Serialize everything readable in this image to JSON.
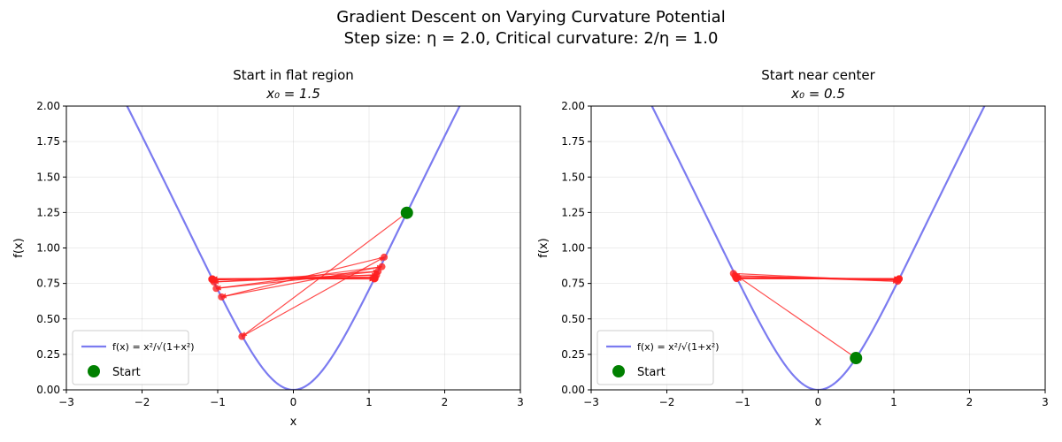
{
  "figure": {
    "suptitle_line1": "Gradient Descent on Varying Curvature Potential",
    "suptitle_line2": "Step size: η = 2.0, Critical curvature: 2/η = 1.0"
  },
  "chart_data": [
    {
      "type": "line",
      "title": "Start in flat region",
      "subtitle": "x₀ = 1.5",
      "xlabel": "x",
      "ylabel": "f(x)",
      "xlim": [
        -3,
        3
      ],
      "ylim": [
        0,
        2
      ],
      "xticks": [
        "−3",
        "−2",
        "−1",
        "0",
        "1",
        "2",
        "3"
      ],
      "yticks": [
        "0.00",
        "0.25",
        "0.50",
        "0.75",
        "1.00",
        "1.25",
        "1.50",
        "1.75",
        "2.00"
      ],
      "grid": true,
      "legend_position": "lower-left",
      "legend": [
        {
          "label": "f(x) = x²/√(1+x²)",
          "marker": "line",
          "color": "#7b7bf0"
        },
        {
          "label": "Start",
          "marker": "circle",
          "color": "#008000"
        }
      ],
      "curve": {
        "function": "x^2/sqrt(1+x^2)",
        "color": "#7b7bf0"
      },
      "start": {
        "x": 1.5,
        "y": 1.248
      },
      "path_color": "#ff2020",
      "path": [
        {
          "x": 1.5,
          "y": 1.248
        },
        {
          "x": -0.68,
          "y": 0.376
        },
        {
          "x": 1.2,
          "y": 0.935
        },
        {
          "x": -0.95,
          "y": 0.655
        },
        {
          "x": 1.17,
          "y": 0.868
        },
        {
          "x": -1.02,
          "y": 0.715
        },
        {
          "x": 1.12,
          "y": 0.835
        },
        {
          "x": -1.05,
          "y": 0.76
        },
        {
          "x": 1.1,
          "y": 0.81
        },
        {
          "x": -1.07,
          "y": 0.775
        },
        {
          "x": 1.08,
          "y": 0.795
        },
        {
          "x": -1.08,
          "y": 0.78
        },
        {
          "x": 1.08,
          "y": 0.785
        },
        {
          "x": -1.07,
          "y": 0.782
        },
        {
          "x": 1.07,
          "y": 0.783
        },
        {
          "x": -1.07,
          "y": 0.782
        },
        {
          "x": 1.07,
          "y": 0.782
        }
      ]
    },
    {
      "type": "line",
      "title": "Start near center",
      "subtitle": "x₀ = 0.5",
      "xlabel": "x",
      "ylabel": "f(x)",
      "xlim": [
        -3,
        3
      ],
      "ylim": [
        0,
        2
      ],
      "xticks": [
        "−3",
        "−2",
        "−1",
        "0",
        "1",
        "2",
        "3"
      ],
      "yticks": [
        "0.00",
        "0.25",
        "0.50",
        "0.75",
        "1.00",
        "1.25",
        "1.50",
        "1.75",
        "2.00"
      ],
      "grid": true,
      "legend_position": "lower-left",
      "legend": [
        {
          "label": "f(x) = x²/√(1+x²)",
          "marker": "line",
          "color": "#7b7bf0"
        },
        {
          "label": "Start",
          "marker": "circle",
          "color": "#008000"
        }
      ],
      "curve": {
        "function": "x^2/sqrt(1+x^2)",
        "color": "#7b7bf0"
      },
      "start": {
        "x": 0.5,
        "y": 0.224
      },
      "path_color": "#ff2020",
      "path": [
        {
          "x": 0.5,
          "y": 0.224
        },
        {
          "x": -1.12,
          "y": 0.82
        },
        {
          "x": 1.05,
          "y": 0.765
        },
        {
          "x": -1.1,
          "y": 0.805
        },
        {
          "x": 1.06,
          "y": 0.775
        },
        {
          "x": -1.09,
          "y": 0.792
        },
        {
          "x": 1.07,
          "y": 0.782
        },
        {
          "x": -1.08,
          "y": 0.786
        },
        {
          "x": 1.07,
          "y": 0.783
        },
        {
          "x": -1.08,
          "y": 0.784
        },
        {
          "x": 1.07,
          "y": 0.783
        }
      ]
    }
  ]
}
